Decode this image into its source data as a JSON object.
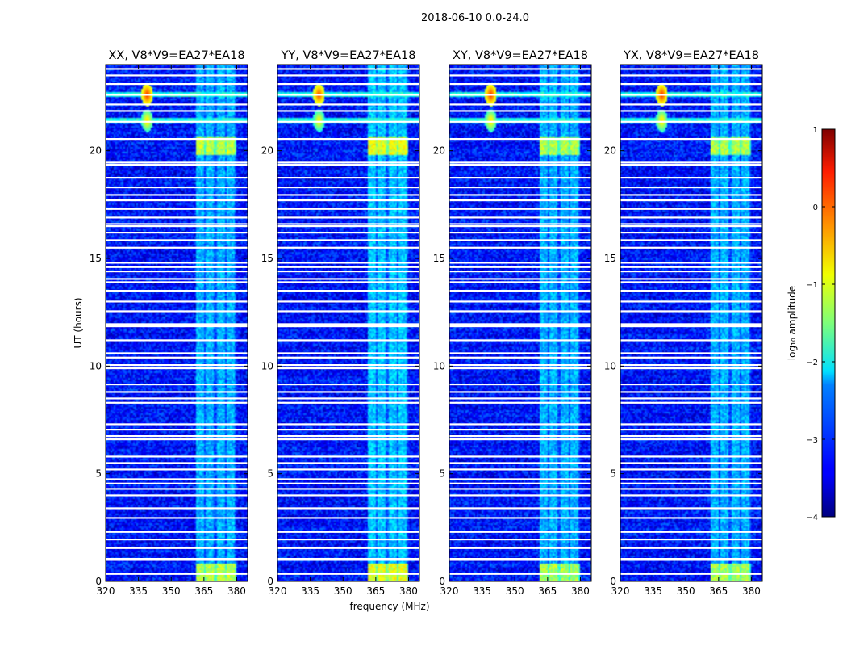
{
  "figure": {
    "suptitle": "2018-06-10 0.0-24.0",
    "xlabel": "frequency (MHz)",
    "ylabel": "UT (hours)"
  },
  "colorbar": {
    "label": "log₁₀ amplitude",
    "ticks": [
      1,
      0,
      -1,
      -2,
      -3,
      -4
    ],
    "tick_labels": [
      "1",
      "0",
      "−1",
      "−2",
      "−3",
      "−4"
    ],
    "range": [
      -4,
      1
    ],
    "colormap": "jet"
  },
  "chart_data": [
    {
      "type": "heatmap",
      "title": "XX, V8*V9=EA27*EA18",
      "polarization": "XX",
      "xlabel": "frequency (MHz)",
      "ylabel": "UT (hours)",
      "xlim": [
        320,
        385
      ],
      "ylim": [
        0,
        24
      ],
      "xticks": [
        320,
        335,
        350,
        365,
        380
      ],
      "yticks": [
        0,
        5,
        10,
        15,
        20
      ],
      "base_level": -3.3,
      "band_mhz": [
        361.5,
        380
      ],
      "band_level": -2.5,
      "strong_band_hours": [
        [
          19.8,
          20.6
        ],
        [
          0.0,
          0.8
        ]
      ],
      "strong_band_level": -1.2,
      "flagged_hours": [
        0.35,
        1.0,
        1.05,
        1.55,
        1.95,
        2.3,
        2.95,
        3.4,
        4.0,
        4.3,
        4.55,
        4.75,
        5.2,
        5.5,
        5.8,
        6.6,
        6.75,
        7.05,
        7.3,
        8.3,
        8.5,
        8.8,
        9.15,
        9.9,
        10.05,
        10.4,
        10.6,
        11.2,
        11.85,
        11.95,
        12.55,
        13.0,
        13.5,
        13.9,
        14.05,
        14.4,
        14.6,
        14.8,
        15.5,
        15.85,
        16.2,
        16.5,
        16.6,
        16.9,
        17.3,
        17.7,
        17.95,
        18.3,
        18.75,
        19.35,
        19.45,
        20.55,
        21.35,
        21.85,
        22.15,
        22.6,
        23.1,
        23.5,
        23.8
      ],
      "rfi_events": [
        {
          "freq_mhz": 339,
          "hour": 22.6,
          "level": 0.2
        },
        {
          "freq_mhz": 339,
          "hour": 21.4,
          "level": -0.6
        }
      ],
      "rfi_hours": [
        22.6,
        21.4
      ]
    },
    {
      "type": "heatmap",
      "title": "YY, V8*V9=EA27*EA18",
      "polarization": "YY",
      "xlabel": "frequency (MHz)",
      "ylabel": "UT (hours)",
      "xlim": [
        320,
        385
      ],
      "ylim": [
        0,
        24
      ],
      "xticks": [
        320,
        335,
        350,
        365,
        380
      ],
      "yticks": [
        0,
        5,
        10,
        15,
        20
      ],
      "base_level": -3.3,
      "band_mhz": [
        361.5,
        380
      ],
      "band_level": -2.4,
      "strong_band_hours": [
        [
          19.8,
          20.6
        ],
        [
          0.0,
          0.8
        ]
      ],
      "strong_band_level": -1.0,
      "flagged_hours": [
        0.35,
        1.0,
        1.05,
        1.55,
        1.95,
        2.3,
        2.95,
        3.4,
        4.0,
        4.3,
        4.55,
        4.75,
        5.2,
        5.5,
        5.8,
        6.6,
        6.75,
        7.05,
        7.3,
        8.3,
        8.5,
        8.8,
        9.15,
        9.9,
        10.05,
        10.4,
        10.6,
        11.2,
        11.85,
        11.95,
        12.55,
        13.0,
        13.5,
        13.9,
        14.05,
        14.4,
        14.6,
        14.8,
        15.5,
        15.85,
        16.2,
        16.5,
        16.6,
        16.9,
        17.3,
        17.7,
        17.95,
        18.3,
        18.75,
        19.35,
        19.45,
        20.55,
        21.35,
        21.85,
        22.15,
        22.6,
        23.1,
        23.5,
        23.8
      ],
      "rfi_events": [
        {
          "freq_mhz": 339,
          "hour": 22.6,
          "level": 0.1
        },
        {
          "freq_mhz": 339,
          "hour": 21.4,
          "level": -0.7
        }
      ],
      "rfi_hours": [
        22.6,
        21.4
      ]
    },
    {
      "type": "heatmap",
      "title": "XY, V8*V9=EA27*EA18",
      "polarization": "XY",
      "xlabel": "frequency (MHz)",
      "ylabel": "UT (hours)",
      "xlim": [
        320,
        385
      ],
      "ylim": [
        0,
        24
      ],
      "xticks": [
        320,
        335,
        350,
        365,
        380
      ],
      "yticks": [
        0,
        5,
        10,
        15,
        20
      ],
      "base_level": -3.3,
      "band_mhz": [
        361.5,
        380
      ],
      "band_level": -2.5,
      "strong_band_hours": [
        [
          19.8,
          20.6
        ],
        [
          0.0,
          0.8
        ]
      ],
      "strong_band_level": -1.3,
      "flagged_hours": [
        0.35,
        1.0,
        1.05,
        1.55,
        1.95,
        2.3,
        2.95,
        3.4,
        4.0,
        4.3,
        4.55,
        4.75,
        5.2,
        5.5,
        5.8,
        6.6,
        6.75,
        7.05,
        7.3,
        8.3,
        8.5,
        8.8,
        9.15,
        9.9,
        10.05,
        10.4,
        10.6,
        11.2,
        11.85,
        11.95,
        12.55,
        13.0,
        13.5,
        13.9,
        14.05,
        14.4,
        14.6,
        14.8,
        15.5,
        15.85,
        16.2,
        16.5,
        16.6,
        16.9,
        17.3,
        17.7,
        17.95,
        18.3,
        18.75,
        19.35,
        19.45,
        20.55,
        21.35,
        21.85,
        22.15,
        22.6,
        23.1,
        23.5,
        23.8
      ],
      "rfi_events": [
        {
          "freq_mhz": 339,
          "hour": 22.6,
          "level": 0.2
        },
        {
          "freq_mhz": 339,
          "hour": 21.4,
          "level": -0.6
        }
      ],
      "rfi_hours": [
        22.6,
        21.4
      ]
    },
    {
      "type": "heatmap",
      "title": "YX, V8*V9=EA27*EA18",
      "polarization": "YX",
      "xlabel": "frequency (MHz)",
      "ylabel": "UT (hours)",
      "xlim": [
        320,
        385
      ],
      "ylim": [
        0,
        24
      ],
      "xticks": [
        320,
        335,
        350,
        365,
        380
      ],
      "yticks": [
        0,
        5,
        10,
        15,
        20
      ],
      "base_level": -3.3,
      "band_mhz": [
        361.5,
        380
      ],
      "band_level": -2.5,
      "strong_band_hours": [
        [
          19.8,
          20.6
        ],
        [
          0.0,
          0.8
        ]
      ],
      "strong_band_level": -1.3,
      "flagged_hours": [
        0.35,
        1.0,
        1.05,
        1.55,
        1.95,
        2.3,
        2.95,
        3.4,
        4.0,
        4.3,
        4.55,
        4.75,
        5.2,
        5.5,
        5.8,
        6.6,
        6.75,
        7.05,
        7.3,
        8.3,
        8.5,
        8.8,
        9.15,
        9.9,
        10.05,
        10.4,
        10.6,
        11.2,
        11.85,
        11.95,
        12.55,
        13.0,
        13.5,
        13.9,
        14.05,
        14.4,
        14.6,
        14.8,
        15.5,
        15.85,
        16.2,
        16.5,
        16.6,
        16.9,
        17.3,
        17.7,
        17.95,
        18.3,
        18.75,
        19.35,
        19.45,
        20.55,
        21.35,
        21.85,
        22.15,
        22.6,
        23.1,
        23.5,
        23.8
      ],
      "rfi_events": [
        {
          "freq_mhz": 339,
          "hour": 22.6,
          "level": 0.2
        },
        {
          "freq_mhz": 339,
          "hour": 21.4,
          "level": -0.6
        }
      ],
      "rfi_hours": [
        22.6,
        21.4
      ]
    }
  ]
}
